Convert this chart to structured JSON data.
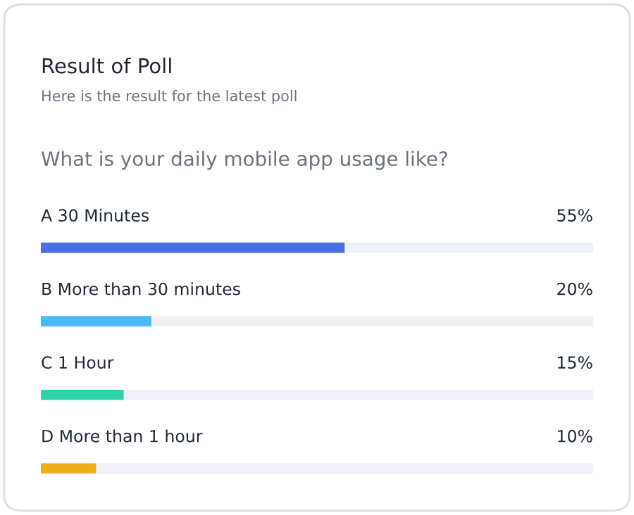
{
  "chart_data": {
    "type": "bar",
    "orientation": "horizontal",
    "title": "Result of Poll",
    "subtitle": "Here is the result for the latest poll",
    "annotations": [
      "What is your daily mobile app usage like?"
    ],
    "categories": [
      "A 30 Minutes",
      "B More than 30 minutes",
      "C 1 Hour",
      "D More than 1 hour"
    ],
    "values": [
      55,
      20,
      15,
      10
    ],
    "value_labels": [
      "55%",
      "20%",
      "15%",
      "10%"
    ],
    "colors": [
      "#4a6fe3",
      "#4cb8f5",
      "#2ed3a8",
      "#f0ad1a"
    ],
    "xlim": [
      0,
      100
    ]
  }
}
